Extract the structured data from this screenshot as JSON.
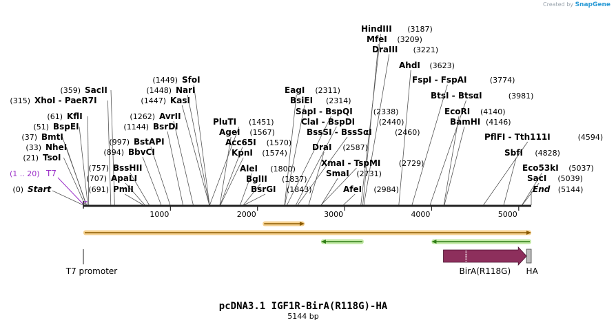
{
  "credit": {
    "prefix": "Created by",
    "brand": "SnapGene"
  },
  "title": "pcDNA3.1 IGF1R-BirA(R118G)-HA",
  "subtitle": "5144 bp",
  "sequence_length": 5144,
  "colors": {
    "backbone": "#222222",
    "line": "#555555",
    "primer_label": "#9b30c8",
    "orange_fill": "#f5cf8a",
    "orange_stroke": "#8a5a00",
    "green_fill": "#bfe8a0",
    "green_stroke": "#2f7d16",
    "cds_fill": "#8d2f5c"
  },
  "ticks": [
    1000,
    2000,
    3000,
    4000,
    5000
  ],
  "sites": [
    {
      "name": "Start",
      "pos": "(0)",
      "bp": 0,
      "italic": true
    },
    {
      "name": "PmlI",
      "pos": "(691)",
      "bp": 691
    },
    {
      "name": "ApaLI",
      "pos": "(707)",
      "bp": 707
    },
    {
      "name": "BssHII",
      "pos": "(757)",
      "bp": 757
    },
    {
      "name": "BbvCI",
      "pos": "(894)",
      "bp": 894
    },
    {
      "name": "BstAPI",
      "pos": "(997)",
      "bp": 997
    },
    {
      "name": "BsrDI",
      "pos": "(1144)",
      "bp": 1144
    },
    {
      "name": "AvrII",
      "pos": "(1262)",
      "bp": 1262
    },
    {
      "name": "KasI",
      "pos": "(1447)",
      "bp": 1447
    },
    {
      "name": "NarI",
      "pos": "(1448)",
      "bp": 1448
    },
    {
      "name": "SfoI",
      "pos": "(1449)",
      "bp": 1449
    },
    {
      "name": "SacII",
      "pos": "(359)",
      "bp": 359
    },
    {
      "name": "XhoI  - PaeR7I",
      "pos": "(315)",
      "bp": 315
    },
    {
      "name": "KflI",
      "pos": "(61)",
      "bp": 61
    },
    {
      "name": "BspEI",
      "pos": "(51)",
      "bp": 51
    },
    {
      "name": "BmtI",
      "pos": "(37)",
      "bp": 37
    },
    {
      "name": "NheI",
      "pos": "(33)",
      "bp": 33
    },
    {
      "name": "TsoI",
      "pos": "(21)",
      "bp": 21
    },
    {
      "name": "PluTI",
      "pos": "(1451)",
      "bp": 1451
    },
    {
      "name": "AgeI",
      "pos": "(1567)",
      "bp": 1567
    },
    {
      "name": "Acc65I",
      "pos": "(1570)",
      "bp": 1570
    },
    {
      "name": "KpnI",
      "pos": "(1574)",
      "bp": 1574
    },
    {
      "name": "AleI",
      "pos": "(1800)",
      "bp": 1800
    },
    {
      "name": "BglII",
      "pos": "(1837)",
      "bp": 1837
    },
    {
      "name": "BsrGI",
      "pos": "(1843)",
      "bp": 1843
    },
    {
      "name": "EagI",
      "pos": "(2311)",
      "bp": 2311
    },
    {
      "name": "BsiEI",
      "pos": "(2314)",
      "bp": 2314
    },
    {
      "name": "SapI  - BspQI",
      "pos": "(2338)",
      "bp": 2338
    },
    {
      "name": "ClaI  - BspDI",
      "pos": "(2440)",
      "bp": 2440
    },
    {
      "name": "BssSI  - BssSαI",
      "pos": "(2460)",
      "bp": 2460
    },
    {
      "name": "DraI",
      "pos": "(2587)",
      "bp": 2587
    },
    {
      "name": "XmaI  - TspMI",
      "pos": "(2729)",
      "bp": 2729
    },
    {
      "name": "SmaI",
      "pos": "(2731)",
      "bp": 2731
    },
    {
      "name": "AfeI",
      "pos": "(2984)",
      "bp": 2984
    },
    {
      "name": "HindIII",
      "pos": "(3187)",
      "bp": 3187
    },
    {
      "name": "MfeI",
      "pos": "(3209)",
      "bp": 3209
    },
    {
      "name": "DraIII",
      "pos": "(3221)",
      "bp": 3221
    },
    {
      "name": "AhdI",
      "pos": "(3623)",
      "bp": 3623
    },
    {
      "name": "FspI  - FspAI",
      "pos": "(3774)",
      "bp": 3774
    },
    {
      "name": "BtsI  - BtsαI",
      "pos": "(3981)",
      "bp": 3981
    },
    {
      "name": "EcoRI",
      "pos": "(4140)",
      "bp": 4140
    },
    {
      "name": "BamHI",
      "pos": "(4146)",
      "bp": 4146
    },
    {
      "name": "PflFI  - Tth111I",
      "pos": "(4594)",
      "bp": 4594
    },
    {
      "name": "SbfI",
      "pos": "(4828)",
      "bp": 4828
    },
    {
      "name": "Eco53kI",
      "pos": "(5037)",
      "bp": 5037
    },
    {
      "name": "SacI",
      "pos": "(5039)",
      "bp": 5039
    },
    {
      "name": "End",
      "pos": "(5144)",
      "bp": 5144,
      "italic": true
    }
  ],
  "primer": {
    "name": "T7",
    "pos": "(1 .. 20)",
    "start": 1,
    "end": 20
  },
  "orfs": [
    {
      "start": 0,
      "end": 5144,
      "direction": "forward",
      "color": "orange"
    },
    {
      "start": 2060,
      "end": 2540,
      "direction": "forward",
      "color": "orange"
    },
    {
      "start": 2730,
      "end": 3220,
      "direction": "reverse",
      "color": "green"
    },
    {
      "start": 4000,
      "end": 5144,
      "direction": "reverse",
      "color": "green"
    }
  ],
  "features": [
    {
      "name": "T7 promoter",
      "start": 0,
      "end": 20,
      "type": "promoter"
    },
    {
      "name": "BirA(R118G)",
      "start": 4135,
      "end": 5090,
      "type": "cds"
    },
    {
      "name": "HA",
      "start": 5090,
      "end": 5144,
      "type": "tag"
    }
  ]
}
